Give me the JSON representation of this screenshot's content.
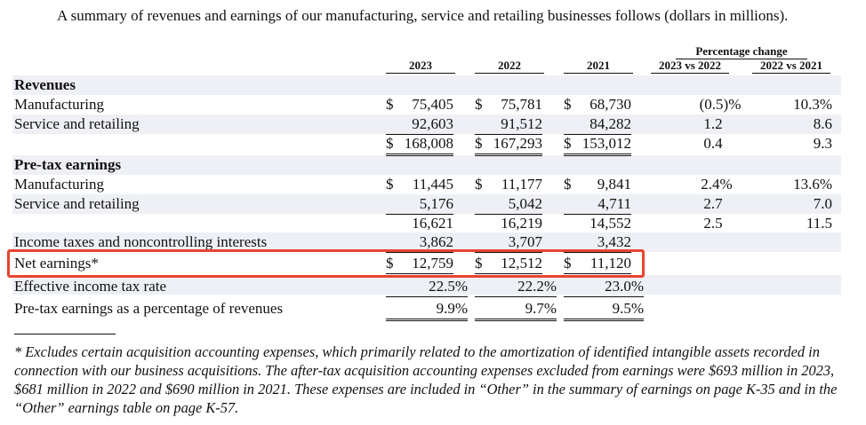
{
  "intro": "A summary of revenues and earnings of our manufacturing, service and retailing businesses follows (dollars in millions).",
  "headers": {
    "years": [
      "2023",
      "2022",
      "2021"
    ],
    "pct_group": "Percentage change",
    "pct_cols": [
      "2023 vs 2022",
      "2022 vs 2021"
    ]
  },
  "sections": {
    "revenues": "Revenues",
    "pretax": "Pre-tax earnings"
  },
  "rows": {
    "rev_mfg": {
      "label": "Manufacturing",
      "vals": [
        "75,405",
        "75,781",
        "68,730"
      ],
      "dollar": "$",
      "pct": [
        "(0.5)%",
        "10.3%"
      ]
    },
    "rev_svc": {
      "label": "Service and retailing",
      "vals": [
        "92,603",
        "91,512",
        "84,282"
      ],
      "pct": [
        "1.2",
        "8.6"
      ]
    },
    "rev_total": {
      "vals": [
        "168,008",
        "167,293",
        "153,012"
      ],
      "dollar": "$",
      "pct": [
        "0.4",
        "9.3"
      ]
    },
    "pt_mfg": {
      "label": "Manufacturing",
      "vals": [
        "11,445",
        "11,177",
        "9,841"
      ],
      "dollar": "$",
      "pct": [
        "2.4%",
        "13.6%"
      ]
    },
    "pt_svc": {
      "label": "Service and retailing",
      "vals": [
        "5,176",
        "5,042",
        "4,711"
      ],
      "pct": [
        "2.7",
        "7.0"
      ]
    },
    "pt_total": {
      "vals": [
        "16,621",
        "16,219",
        "14,552"
      ],
      "pct": [
        "2.5",
        "11.5"
      ]
    },
    "taxes": {
      "label": "Income taxes and noncontrolling interests",
      "vals": [
        "3,862",
        "3,707",
        "3,432"
      ]
    },
    "net": {
      "label": "Net earnings*",
      "vals": [
        "12,759",
        "12,512",
        "11,120"
      ],
      "dollar": "$"
    },
    "eff_tax": {
      "label": "Effective income tax rate",
      "vals": [
        "22.5%",
        "22.2%",
        "23.0%"
      ]
    },
    "pretax_pct": {
      "label": "Pre-tax earnings as a percentage of revenues",
      "vals": [
        "9.9%",
        "9.7%",
        "9.5%"
      ]
    }
  },
  "footnote": "* Excludes certain acquisition accounting expenses, which primarily related to the amortization of identified intangible assets recorded in connection with our business acquisitions. The after-tax acquisition accounting expenses excluded from earnings were $693 million in 2023, $681 million in 2022 and $690 million in 2021. These expenses are included in “Other” in the summary of earnings on page K-35 and in the “Other” earnings table on page K-57.",
  "colors": {
    "highlight": "#e8442e",
    "row_shade": "#eef0f6"
  }
}
